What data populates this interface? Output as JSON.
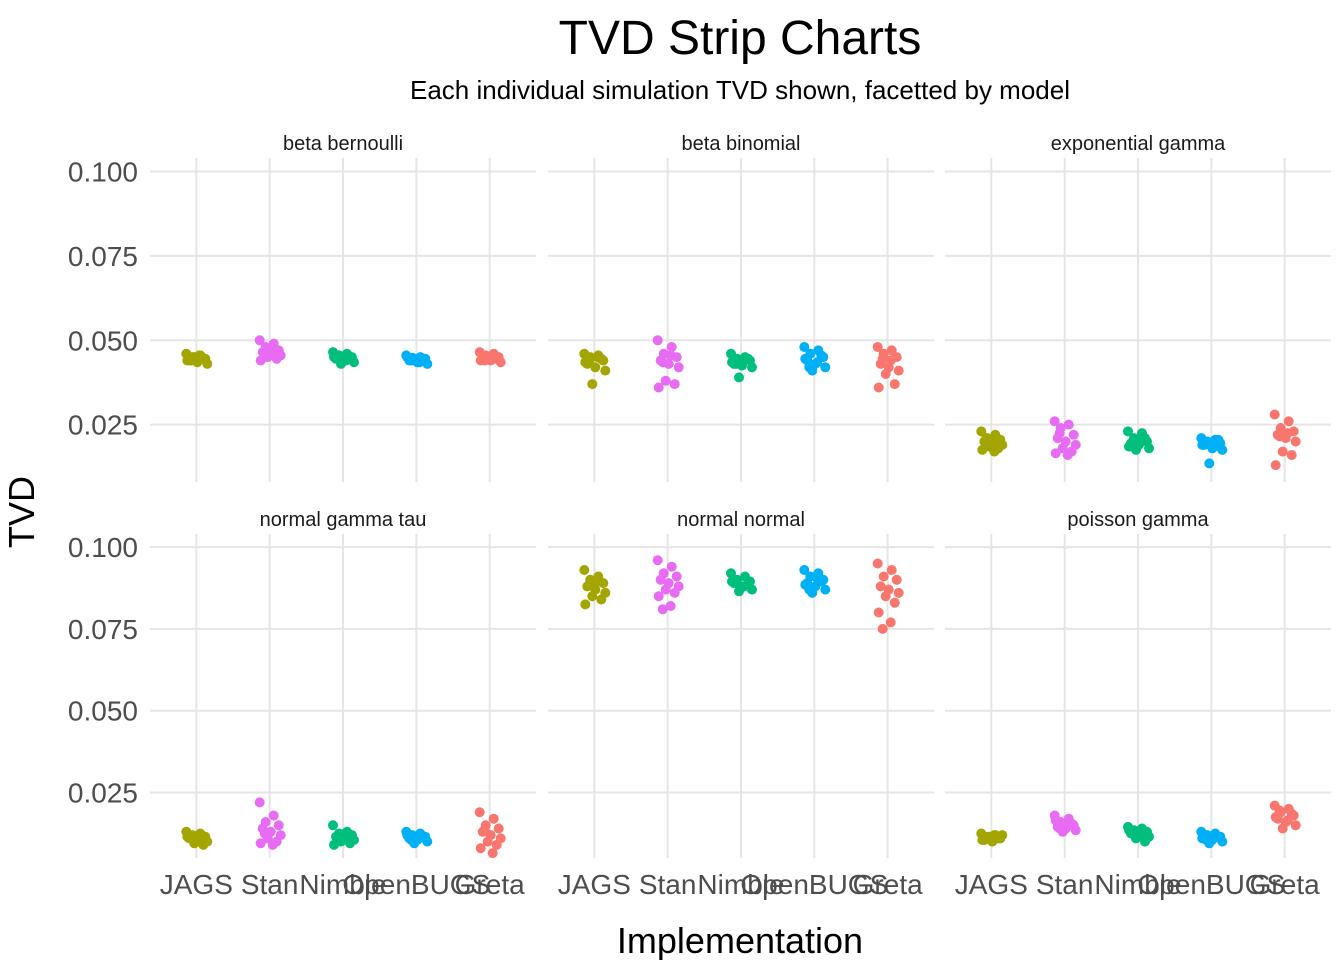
{
  "chart_data": {
    "type": "scatter",
    "style": "jittered strip chart, faceted",
    "title": "TVD Strip Charts",
    "subtitle": "Each individual simulation TVD shown, facetted by model",
    "xlabel": "Implementation",
    "ylabel": "TVD",
    "categories": [
      "JAGS",
      "Stan",
      "Nimble",
      "OpenBUGS",
      "Greta"
    ],
    "colors": {
      "JAGS": "#A3A500",
      "Stan": "#E76BF3",
      "Nimble": "#00BF7D",
      "OpenBUGS": "#00B0F6",
      "Greta": "#F8766D"
    },
    "y_ticks": [
      "0.025",
      "0.050",
      "0.075",
      "0.100"
    ],
    "grid": true,
    "legend": "none",
    "facet_rows": [
      {
        "ylim": [
          0.008,
          0.104
        ],
        "panels": [
          {
            "title": "beta bernoulli",
            "values": {
              "JAGS": [
                0.046,
                0.0455,
                0.045,
                0.0445,
                0.044,
                0.0435,
                0.043,
                0.045,
                0.0445,
                0.044,
                0.0455,
                0.044
              ],
              "Stan": [
                0.05,
                0.049,
                0.048,
                0.047,
                0.0465,
                0.046,
                0.0455,
                0.045,
                0.0445,
                0.044,
                0.047,
                0.046
              ],
              "Nimble": [
                0.0465,
                0.046,
                0.0455,
                0.045,
                0.0445,
                0.044,
                0.0435,
                0.043,
                0.0445,
                0.045,
                0.044,
                0.0455
              ],
              "OpenBUGS": [
                0.0455,
                0.045,
                0.0448,
                0.0445,
                0.044,
                0.0435,
                0.043,
                0.0445,
                0.044,
                0.045,
                0.0435,
                0.044
              ],
              "Greta": [
                0.0465,
                0.046,
                0.0455,
                0.045,
                0.0445,
                0.044,
                0.0435,
                0.045,
                0.0445,
                0.044,
                0.0455,
                0.044
              ]
            }
          },
          {
            "title": "beta binomial",
            "values": {
              "JAGS": [
                0.046,
                0.0455,
                0.045,
                0.044,
                0.043,
                0.042,
                0.041,
                0.037,
                0.0445,
                0.0435,
                0.045,
                0.044
              ],
              "Stan": [
                0.05,
                0.048,
                0.046,
                0.045,
                0.044,
                0.043,
                0.042,
                0.038,
                0.037,
                0.036,
                0.0455,
                0.0435
              ],
              "Nimble": [
                0.046,
                0.045,
                0.0445,
                0.044,
                0.043,
                0.0425,
                0.042,
                0.039,
                0.0445,
                0.0435,
                0.044,
                0.043
              ],
              "OpenBUGS": [
                0.048,
                0.047,
                0.046,
                0.045,
                0.044,
                0.043,
                0.042,
                0.041,
                0.0455,
                0.0445,
                0.0435,
                0.042
              ],
              "Greta": [
                0.048,
                0.047,
                0.046,
                0.045,
                0.043,
                0.042,
                0.041,
                0.04,
                0.037,
                0.036,
                0.044,
                0.0445
              ]
            }
          },
          {
            "title": "exponential gamma",
            "values": {
              "JAGS": [
                0.023,
                0.022,
                0.021,
                0.0205,
                0.02,
                0.0195,
                0.019,
                0.0185,
                0.018,
                0.0175,
                0.017,
                0.021
              ],
              "Stan": [
                0.026,
                0.025,
                0.024,
                0.022,
                0.021,
                0.02,
                0.019,
                0.018,
                0.017,
                0.0165,
                0.016,
                0.0225
              ],
              "Nimble": [
                0.023,
                0.0225,
                0.021,
                0.02,
                0.0195,
                0.019,
                0.018,
                0.0175,
                0.021,
                0.0185,
                0.02,
                0.019
              ],
              "OpenBUGS": [
                0.021,
                0.0205,
                0.02,
                0.0195,
                0.019,
                0.018,
                0.0175,
                0.0135,
                0.0205,
                0.019,
                0.0185,
                0.0195
              ],
              "Greta": [
                0.028,
                0.026,
                0.024,
                0.023,
                0.022,
                0.021,
                0.02,
                0.017,
                0.016,
                0.013,
                0.0225,
                0.0215
              ]
            }
          }
        ]
      },
      {
        "ylim": [
          0.005,
          0.104
        ],
        "panels": [
          {
            "title": "normal gamma tau",
            "values": {
              "JAGS": [
                0.013,
                0.0125,
                0.012,
                0.0115,
                0.011,
                0.0105,
                0.01,
                0.0095,
                0.009,
                0.0115,
                0.012,
                0.011
              ],
              "Stan": [
                0.022,
                0.018,
                0.016,
                0.015,
                0.014,
                0.013,
                0.012,
                0.011,
                0.01,
                0.0095,
                0.009,
                0.0125
              ],
              "Nimble": [
                0.015,
                0.013,
                0.0125,
                0.012,
                0.0115,
                0.011,
                0.0105,
                0.01,
                0.0095,
                0.009,
                0.0115,
                0.0105
              ],
              "OpenBUGS": [
                0.013,
                0.0125,
                0.012,
                0.0115,
                0.011,
                0.0105,
                0.01,
                0.0095,
                0.0115,
                0.012,
                0.011,
                0.0105
              ],
              "Greta": [
                0.019,
                0.017,
                0.015,
                0.014,
                0.013,
                0.012,
                0.011,
                0.01,
                0.009,
                0.008,
                0.0065,
                0.0135
              ]
            }
          },
          {
            "title": "normal normal",
            "values": {
              "JAGS": [
                0.093,
                0.091,
                0.09,
                0.089,
                0.088,
                0.087,
                0.086,
                0.085,
                0.084,
                0.0825,
                0.0895,
                0.0885
              ],
              "Stan": [
                0.096,
                0.094,
                0.092,
                0.091,
                0.09,
                0.089,
                0.088,
                0.087,
                0.086,
                0.085,
                0.082,
                0.081
              ],
              "Nimble": [
                0.092,
                0.091,
                0.09,
                0.0895,
                0.089,
                0.088,
                0.087,
                0.0865,
                0.0885,
                0.0895,
                0.088,
                0.089
              ],
              "OpenBUGS": [
                0.093,
                0.092,
                0.091,
                0.09,
                0.089,
                0.088,
                0.087,
                0.086,
                0.0895,
                0.0885,
                0.0905,
                0.087
              ],
              "Greta": [
                0.095,
                0.093,
                0.091,
                0.09,
                0.088,
                0.087,
                0.086,
                0.085,
                0.083,
                0.08,
                0.077,
                0.075
              ]
            }
          },
          {
            "title": "poisson gamma",
            "values": {
              "JAGS": [
                0.0125,
                0.012,
                0.0115,
                0.011,
                0.0105,
                0.01,
                0.012,
                0.0115,
                0.011,
                0.0105,
                0.012,
                0.011
              ],
              "Stan": [
                0.018,
                0.017,
                0.016,
                0.015,
                0.0145,
                0.014,
                0.0135,
                0.013,
                0.0155,
                0.0165,
                0.015,
                0.014
              ],
              "Nimble": [
                0.0145,
                0.014,
                0.0135,
                0.013,
                0.0125,
                0.012,
                0.0115,
                0.011,
                0.01,
                0.0135,
                0.0125,
                0.013
              ],
              "OpenBUGS": [
                0.013,
                0.0125,
                0.012,
                0.0115,
                0.011,
                0.0105,
                0.01,
                0.0095,
                0.0115,
                0.011,
                0.012,
                0.0105
              ],
              "Greta": [
                0.021,
                0.02,
                0.019,
                0.018,
                0.017,
                0.016,
                0.015,
                0.014,
                0.0185,
                0.0175,
                0.0165,
                0.0195
              ]
            }
          }
        ]
      }
    ]
  }
}
